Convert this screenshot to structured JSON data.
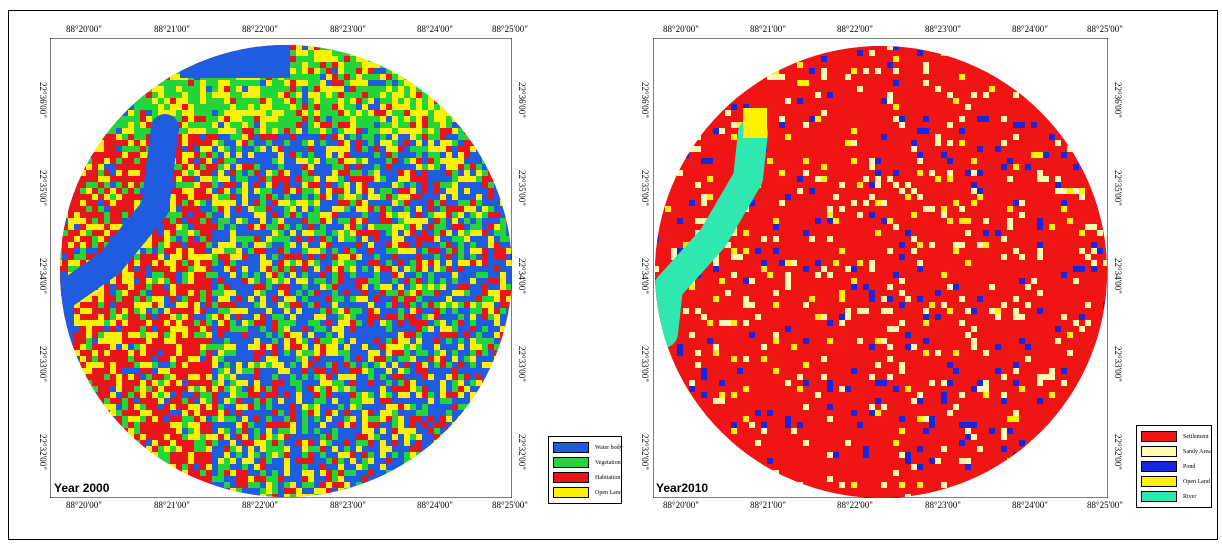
{
  "maps": [
    {
      "id": "map-2000",
      "year_label": "Year 2000",
      "lon_ticks": [
        "88°20'00\"",
        "88°21'00\"",
        "88°22'00\"",
        "88°23'00\"",
        "88°24'00\"",
        "88°25'00\""
      ],
      "lat_ticks": [
        "22°36'00\"",
        "22°35'00\"",
        "22°34'00\"",
        "22°33'00\"",
        "22°32'00\""
      ],
      "legend": [
        {
          "label": "Water body",
          "color": "#1f5ce0"
        },
        {
          "label": "Vegetation",
          "color": "#22d63a"
        },
        {
          "label": "Habitation",
          "color": "#e8161b"
        },
        {
          "label": "Open Land",
          "color": "#fff200"
        }
      ],
      "palette": [
        "#1f5ce0",
        "#22d63a",
        "#e8161b",
        "#fff200"
      ]
    },
    {
      "id": "map-2010",
      "year_label": "Year2010",
      "lon_ticks": [
        "88°20'00\"",
        "88°21'00\"",
        "88°22'00\"",
        "88°23'00\"",
        "88°24'00\"",
        "88°25'00\""
      ],
      "lat_ticks": [
        "22°36'00\"",
        "22°35'00\"",
        "22°34'00\"",
        "22°33'00\"",
        "22°32'00\""
      ],
      "legend": [
        {
          "label": "Settlement",
          "color": "#f01414"
        },
        {
          "label": "Sandy Area",
          "color": "#fffbb0"
        },
        {
          "label": "Pond",
          "color": "#1426e0"
        },
        {
          "label": "Open Land",
          "color": "#fff200"
        },
        {
          "label": "River",
          "color": "#2ee8b0"
        }
      ],
      "palette": [
        "#f01414",
        "#fffbb0",
        "#1426e0",
        "#fff200",
        "#2ee8b0"
      ]
    }
  ]
}
